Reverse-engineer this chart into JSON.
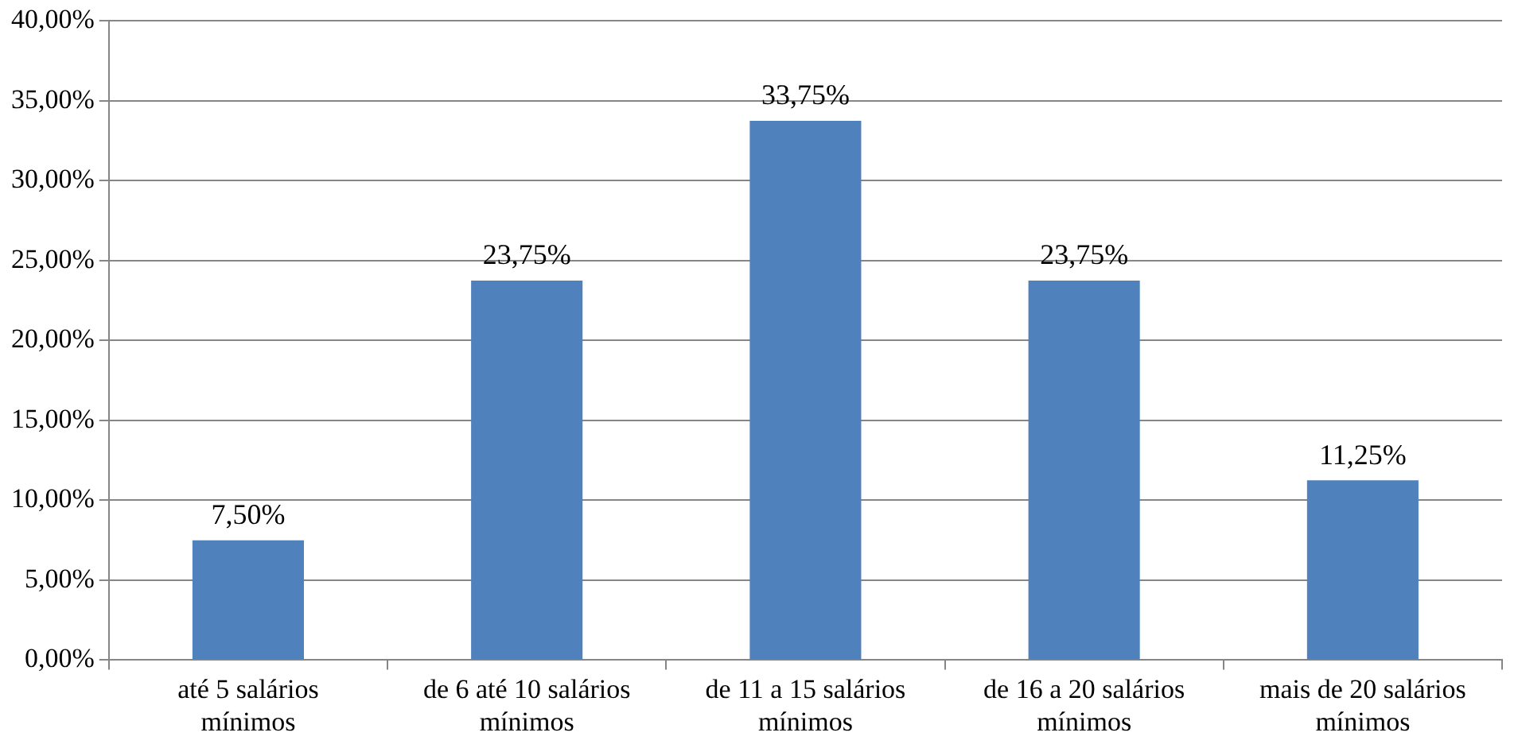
{
  "chart_data": {
    "type": "bar",
    "categories": [
      "até 5 salários mínimos",
      "de 6 até 10 salários mínimos",
      "de 11 a 15 salários mínimos",
      "de 16 a 20 salários mínimos",
      "mais de 20 salários mínimos"
    ],
    "values": [
      7.5,
      23.75,
      33.75,
      23.75,
      11.25
    ],
    "value_labels": [
      "7,50%",
      "23,75%",
      "33,75%",
      "23,75%",
      "11,25%"
    ],
    "color": "#4f81bd",
    "ylim": [
      0,
      40
    ],
    "yticks": [
      {
        "value": 0,
        "label": "0,00%"
      },
      {
        "value": 5,
        "label": "5,00%"
      },
      {
        "value": 10,
        "label": "10,00%"
      },
      {
        "value": 15,
        "label": "15,00%"
      },
      {
        "value": 20,
        "label": "20,00%"
      },
      {
        "value": 25,
        "label": "25,00%"
      },
      {
        "value": 30,
        "label": "30,00%"
      },
      {
        "value": 35,
        "label": "35,00%"
      },
      {
        "value": 40,
        "label": "40,00%"
      }
    ],
    "grid": "y",
    "legend": false
  }
}
